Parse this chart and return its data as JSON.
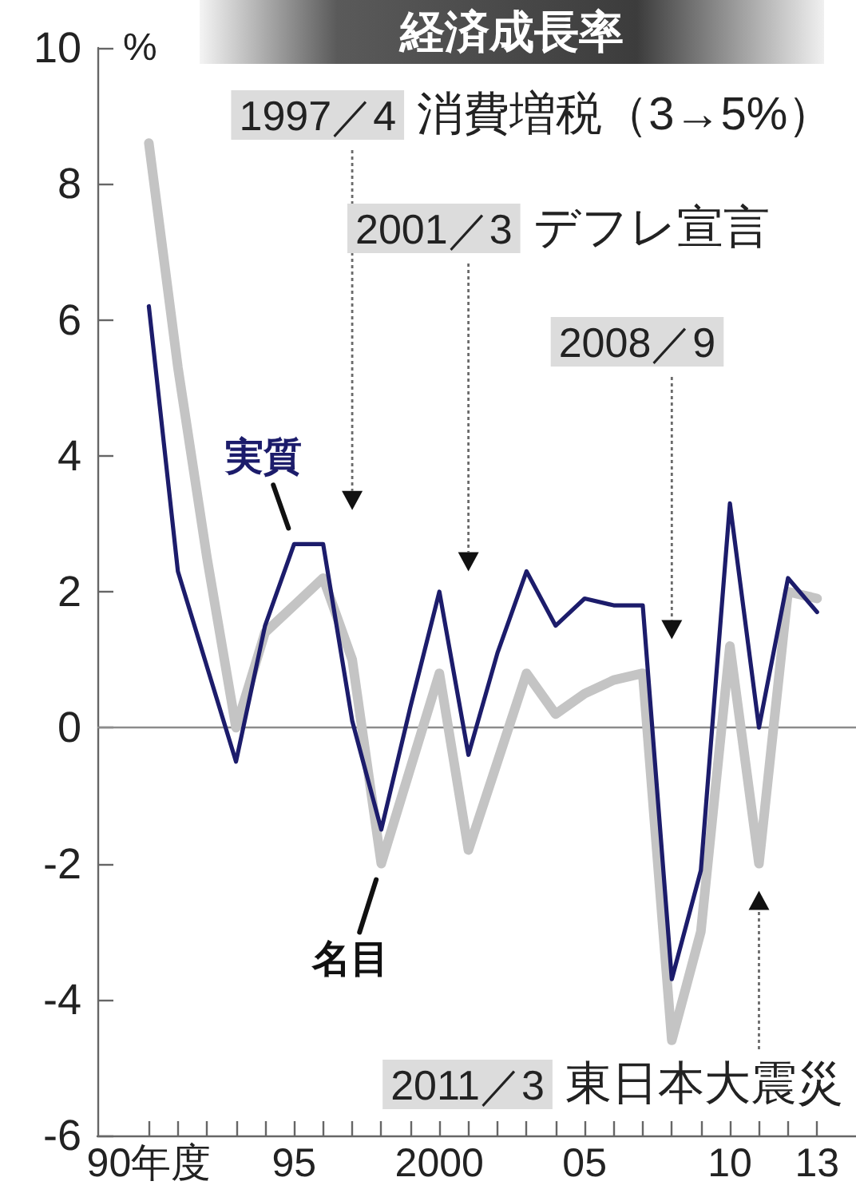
{
  "chart_data": {
    "type": "line",
    "title": "経済成長率",
    "ylabel": "%",
    "categories": [
      "90年度",
      null,
      null,
      null,
      null,
      "95",
      null,
      null,
      null,
      null,
      "2000",
      null,
      null,
      null,
      null,
      "05",
      null,
      null,
      null,
      null,
      "10",
      null,
      null,
      "13"
    ],
    "series": [
      {
        "name": "実質",
        "color": "#1c1c6b",
        "values": [
          6.2,
          2.3,
          0.9,
          -0.5,
          1.5,
          2.7,
          2.7,
          0.1,
          -1.5,
          0.3,
          2.0,
          -0.4,
          1.1,
          2.3,
          1.5,
          1.9,
          1.8,
          1.8,
          -3.7,
          -2.1,
          3.3,
          0.0,
          2.2,
          1.7
        ]
      },
      {
        "name": "名目",
        "color": "#c4c4c4",
        "values": [
          8.6,
          5.3,
          2.5,
          0.0,
          1.4,
          1.8,
          2.2,
          1.0,
          -2.0,
          -0.6,
          0.8,
          -1.8,
          -0.5,
          0.8,
          0.2,
          0.5,
          0.7,
          0.8,
          -4.6,
          -3.0,
          1.2,
          -2.0,
          2.0,
          1.9
        ]
      }
    ],
    "ylim": [
      -6,
      10
    ],
    "yticks": [
      -6,
      -4,
      -2,
      0,
      2,
      4,
      6,
      8,
      10
    ],
    "ref_lines": [
      {
        "axis": "y",
        "value": 0,
        "color": "#8c8c8c"
      }
    ],
    "marker": "none",
    "annotations": [
      "1997／4 消費増税（3→5%）",
      "2001／3 デフレ宣言",
      "2008／9",
      "2011／3 東日本大震災"
    ]
  }
}
